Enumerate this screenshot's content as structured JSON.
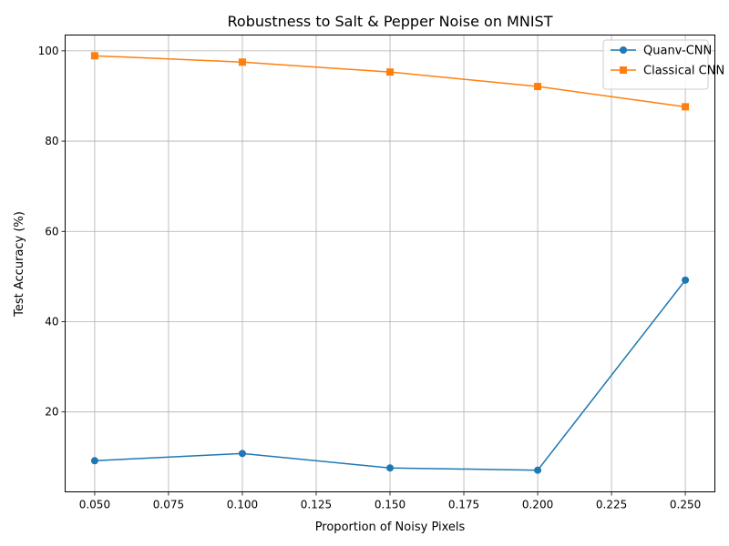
{
  "chart_data": {
    "type": "line",
    "title": "Robustness to Salt & Pepper Noise on MNIST",
    "xlabel": "Proportion of Noisy Pixels",
    "ylabel": "Test Accuracy (%)",
    "x": [
      0.05,
      0.1,
      0.15,
      0.2,
      0.25
    ],
    "xlim": [
      0.04,
      0.26
    ],
    "ylim": [
      2.3,
      103.5
    ],
    "xticks": [
      "0.050",
      "0.075",
      "0.100",
      "0.125",
      "0.150",
      "0.175",
      "0.200",
      "0.225",
      "0.250"
    ],
    "yticks": [
      "20",
      "40",
      "60",
      "80",
      "100"
    ],
    "grid": true,
    "legend_position": "top-right",
    "series": [
      {
        "name": "Quanv-CNN",
        "marker": "circle",
        "color": "#1f77b4",
        "values": [
          9.2,
          10.8,
          7.6,
          7.1,
          49.2
        ]
      },
      {
        "name": "Classical CNN",
        "marker": "square",
        "color": "#ff7f0e",
        "values": [
          98.9,
          97.5,
          95.3,
          92.1,
          87.6
        ]
      }
    ]
  }
}
